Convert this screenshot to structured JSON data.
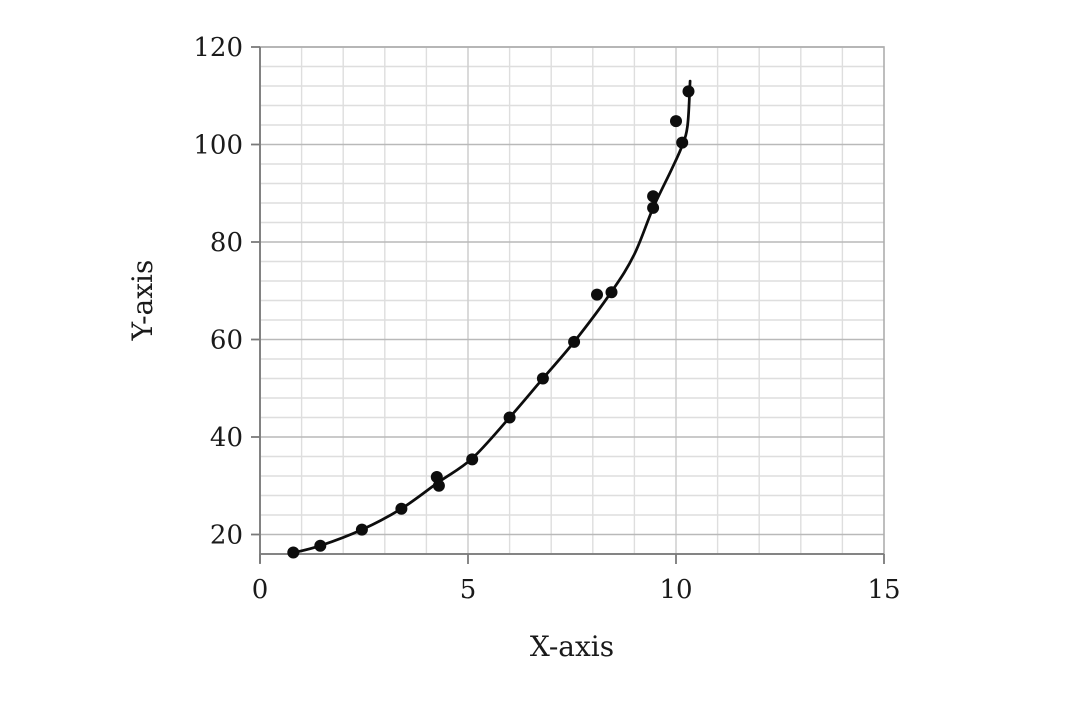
{
  "chart_data": {
    "type": "scatter",
    "title": "",
    "xlabel": "X-axis",
    "ylabel": "Y-axis",
    "xlim": [
      0,
      15
    ],
    "ylim": [
      16,
      120
    ],
    "x_major_ticks": [
      0,
      5,
      10,
      15
    ],
    "x_minor_unit": 1,
    "y_major_ticks": [
      20,
      40,
      60,
      80,
      100,
      120
    ],
    "y_minor_unit": 4,
    "grid": "major+minor",
    "legend_position": "none",
    "series": [
      {
        "name": "data-points",
        "type": "scatter",
        "marker": "filled-circle",
        "color": "#0d0d0d",
        "points": [
          [
            0.8,
            16.3
          ],
          [
            1.45,
            17.7
          ],
          [
            2.45,
            21.0
          ],
          [
            3.4,
            25.3
          ],
          [
            4.25,
            31.8
          ],
          [
            4.3,
            30.0
          ],
          [
            5.1,
            35.4
          ],
          [
            6.0,
            44.0
          ],
          [
            6.8,
            52.0
          ],
          [
            7.55,
            59.5
          ],
          [
            8.1,
            69.2
          ],
          [
            8.45,
            69.7
          ],
          [
            9.45,
            87.0
          ],
          [
            9.45,
            89.4
          ],
          [
            10.0,
            104.8
          ],
          [
            10.15,
            100.4
          ],
          [
            10.3,
            110.9
          ]
        ]
      },
      {
        "name": "fitted-curve",
        "type": "smooth-line",
        "color": "#0d0d0d",
        "points": [
          [
            0.78,
            16.2
          ],
          [
            1.45,
            17.7
          ],
          [
            2.45,
            21.0
          ],
          [
            3.4,
            25.3
          ],
          [
            4.3,
            30.8
          ],
          [
            5.1,
            35.6
          ],
          [
            6.0,
            44.0
          ],
          [
            6.8,
            52.0
          ],
          [
            7.55,
            59.5
          ],
          [
            8.45,
            69.8
          ],
          [
            9.0,
            77.5
          ],
          [
            9.45,
            87.0
          ],
          [
            9.9,
            95.0
          ],
          [
            10.15,
            99.8
          ],
          [
            10.28,
            104.0
          ],
          [
            10.34,
            113.0
          ]
        ]
      }
    ]
  },
  "style": {
    "background": "#ffffff",
    "minor_grid": "#dedede",
    "major_grid": "#b9b9b9",
    "border": "#adadad",
    "axis_line": "#7a7a7a",
    "tick": "#7a7a7a",
    "text": "#1a1a1a",
    "marker": "#0d0d0d",
    "curve": "#0d0d0d"
  }
}
